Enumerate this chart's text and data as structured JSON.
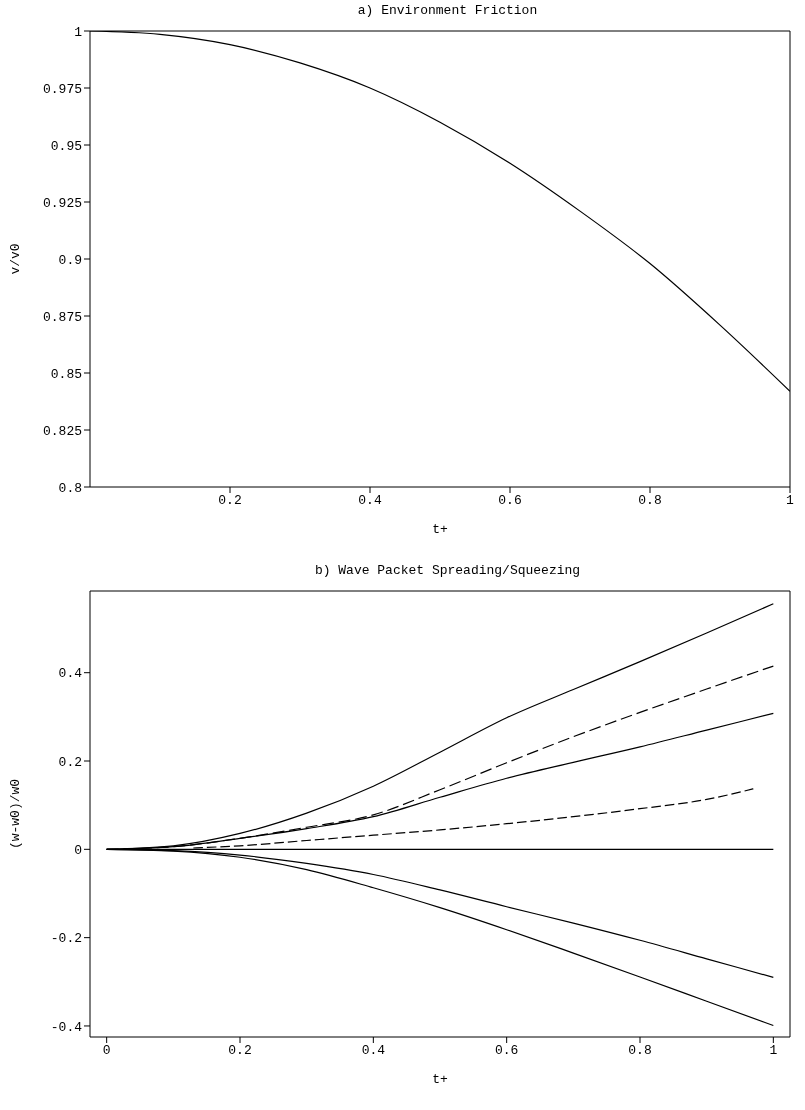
{
  "chart_data": [
    {
      "type": "line",
      "title": "a) Environment Friction",
      "xlabel": "t+",
      "ylabel": "v/v0",
      "xlim": [
        0,
        1
      ],
      "xticks": [
        0.2,
        0.4,
        0.6,
        0.8,
        1
      ],
      "ylim": [
        0.8,
        1
      ],
      "yticks": [
        0.8,
        0.825,
        0.85,
        0.875,
        0.9,
        0.925,
        0.95,
        0.975,
        1
      ],
      "marker": "none",
      "series": [
        {
          "color": "#000000",
          "line_style": "solid",
          "x": [
            0,
            0.1,
            0.2,
            0.3,
            0.4,
            0.5,
            0.6,
            0.7,
            0.8,
            0.9,
            1
          ],
          "values": [
            1,
            0.9985,
            0.994,
            0.986,
            0.975,
            0.96,
            0.942,
            0.921,
            0.898,
            0.871,
            0.842
          ]
        }
      ]
    },
    {
      "type": "line",
      "title": "b) Wave Packet Spreading/Squeezing",
      "xlabel": "t+",
      "ylabel": "(w-w0)/w0",
      "xlim": [
        -0.025,
        1.025
      ],
      "xticks": [
        0,
        0.2,
        0.4,
        0.6,
        0.8,
        1
      ],
      "ylim": [
        -0.425,
        0.585
      ],
      "yticks": [
        -0.4,
        -0.2,
        0,
        0.2,
        0.4
      ],
      "marker": "none",
      "series": [
        {
          "color": "#000000",
          "line_style": "solid",
          "x": [
            0,
            0.1,
            0.2,
            0.3,
            0.4,
            0.5,
            0.6,
            0.7,
            0.8,
            0.9,
            1
          ],
          "values": [
            0,
            0.008,
            0.036,
            0.082,
            0.143,
            0.22,
            0.298,
            0.362,
            0.425,
            0.49,
            0.556
          ]
        },
        {
          "color": "#000000",
          "line_style": "dashed",
          "x": [
            0,
            0.1,
            0.2,
            0.3,
            0.4,
            0.5,
            0.6,
            0.7,
            0.8,
            0.9,
            1
          ],
          "values": [
            0,
            0.006,
            0.025,
            0.05,
            0.078,
            0.135,
            0.196,
            0.255,
            0.31,
            0.363,
            0.415
          ]
        },
        {
          "color": "#000000",
          "line_style": "solid",
          "x": [
            0,
            0.1,
            0.2,
            0.3,
            0.4,
            0.5,
            0.6,
            0.7,
            0.8,
            0.9,
            1
          ],
          "values": [
            0,
            0.006,
            0.025,
            0.047,
            0.074,
            0.118,
            0.161,
            0.197,
            0.232,
            0.27,
            0.308
          ]
        },
        {
          "color": "#000000",
          "line_style": "dashed",
          "x": [
            0.13,
            0.2,
            0.3,
            0.4,
            0.5,
            0.6,
            0.7,
            0.8,
            0.9,
            0.97
          ],
          "values": [
            0.003,
            0.008,
            0.02,
            0.032,
            0.044,
            0.058,
            0.074,
            0.092,
            0.113,
            0.137
          ]
        },
        {
          "color": "#000000",
          "line_style": "solid",
          "x": [
            0,
            1
          ],
          "values": [
            0,
            0
          ]
        },
        {
          "color": "#000000",
          "line_style": "solid",
          "x": [
            0,
            0.1,
            0.2,
            0.3,
            0.4,
            0.5,
            0.6,
            0.7,
            0.8,
            0.9,
            1
          ],
          "values": [
            0,
            -0.003,
            -0.013,
            -0.032,
            -0.057,
            -0.092,
            -0.13,
            -0.167,
            -0.206,
            -0.248,
            -0.29
          ]
        },
        {
          "color": "#000000",
          "line_style": "solid",
          "x": [
            0,
            0.1,
            0.2,
            0.3,
            0.4,
            0.5,
            0.6,
            0.7,
            0.8,
            0.9,
            1
          ],
          "values": [
            0,
            -0.004,
            -0.018,
            -0.046,
            -0.087,
            -0.132,
            -0.182,
            -0.235,
            -0.289,
            -0.344,
            -0.399
          ]
        }
      ]
    }
  ]
}
